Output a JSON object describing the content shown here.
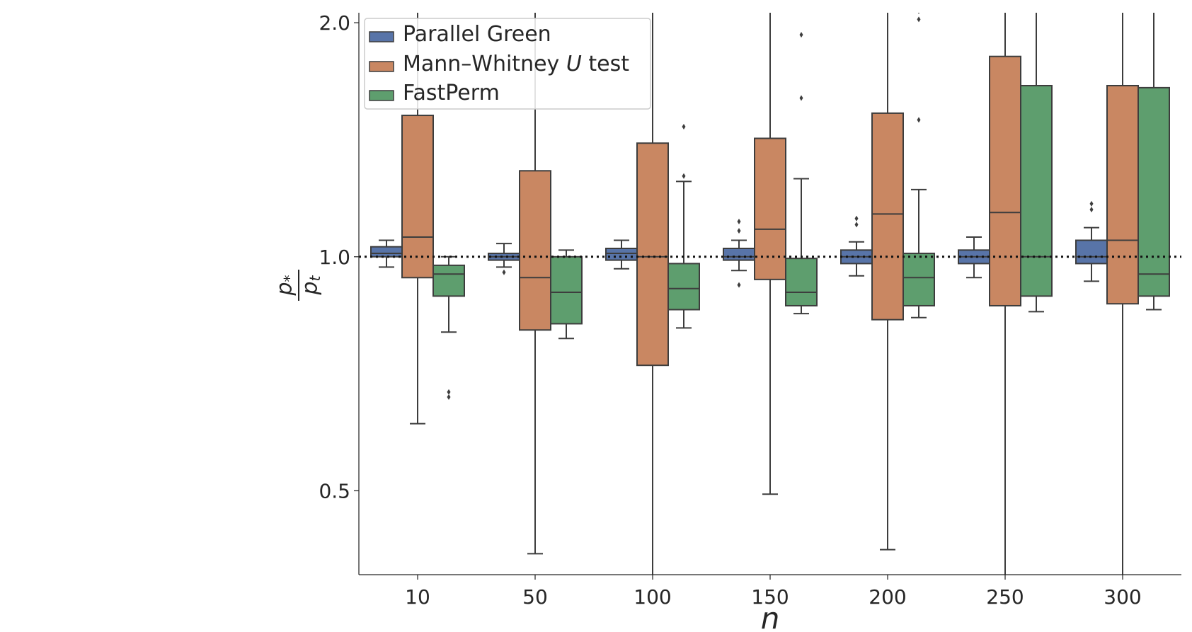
{
  "chart_data": {
    "type": "boxplot",
    "xlabel": "n",
    "ylabel": "p* / p_t",
    "ylabel_parts": {
      "num_base": "p",
      "num_sub": "*",
      "den_base": "p",
      "den_sub": "t"
    },
    "yscale": "log2",
    "ylim": [
      0.39,
      2.06
    ],
    "yticks": [
      0.5,
      1.0,
      2.0
    ],
    "ytick_labels": [
      "0.5",
      "1.0",
      "2.0"
    ],
    "categories": [
      "10",
      "50",
      "100",
      "150",
      "200",
      "250",
      "300"
    ],
    "reference_line": {
      "y": 1.0,
      "style": "dotted"
    },
    "legend": {
      "placement": "upper-left",
      "entries": [
        {
          "label": "Parallel Green"
        },
        {
          "label_pre": "Mann–Whitney ",
          "label_italic": "U",
          "label_post": " test"
        },
        {
          "label": "FastPerm"
        }
      ]
    },
    "series": [
      {
        "name": "Parallel Green",
        "color": "#5874a8",
        "boxes": [
          {
            "whislo": 0.97,
            "q1": 1.0,
            "med": 1.01,
            "q3": 1.03,
            "whishi": 1.05,
            "fliers": []
          },
          {
            "whislo": 0.97,
            "q1": 0.99,
            "med": 1.0,
            "q3": 1.01,
            "whishi": 1.04,
            "fliers": [
              0.955
            ]
          },
          {
            "whislo": 0.965,
            "q1": 0.99,
            "med": 1.01,
            "q3": 1.025,
            "whishi": 1.05,
            "fliers": []
          },
          {
            "whislo": 0.96,
            "q1": 0.99,
            "med": 1.0,
            "q3": 1.025,
            "whishi": 1.05,
            "fliers": [
              1.08,
              1.11,
              0.92
            ]
          },
          {
            "whislo": 0.945,
            "q1": 0.98,
            "med": 1.0,
            "q3": 1.02,
            "whishi": 1.045,
            "fliers": [
              1.1,
              1.12
            ]
          },
          {
            "whislo": 0.94,
            "q1": 0.98,
            "med": 1.0,
            "q3": 1.02,
            "whishi": 1.06,
            "fliers": []
          },
          {
            "whislo": 0.93,
            "q1": 0.98,
            "med": 1.0,
            "q3": 1.05,
            "whishi": 1.09,
            "fliers": [
              1.15,
              1.17
            ]
          }
        ]
      },
      {
        "name": "Mann–Whitney U test",
        "color": "#c98762",
        "boxes": [
          {
            "whislo": 0.61,
            "q1": 0.94,
            "med": 1.06,
            "q3": 1.52,
            "whishi": 2.7,
            "fliers": []
          },
          {
            "whislo": 0.415,
            "q1": 0.805,
            "med": 0.94,
            "q3": 1.29,
            "whishi": 2.7,
            "fliers": []
          },
          {
            "whislo": 0.3,
            "q1": 0.725,
            "med": 1.0,
            "q3": 1.4,
            "whishi": 2.7,
            "fliers": []
          },
          {
            "whislo": 0.495,
            "q1": 0.935,
            "med": 1.085,
            "q3": 1.42,
            "whishi": 2.7,
            "fliers": []
          },
          {
            "whislo": 0.42,
            "q1": 0.83,
            "med": 1.135,
            "q3": 1.53,
            "whishi": 2.7,
            "fliers": []
          },
          {
            "whislo": 0.3,
            "q1": 0.865,
            "med": 1.14,
            "q3": 1.81,
            "whishi": 2.7,
            "fliers": []
          },
          {
            "whislo": 0.3,
            "q1": 0.87,
            "med": 1.05,
            "q3": 1.66,
            "whishi": 2.7,
            "fliers": []
          }
        ]
      },
      {
        "name": "FastPerm",
        "color": "#5e9e6e",
        "boxes": [
          {
            "whislo": 0.8,
            "q1": 0.89,
            "med": 0.95,
            "q3": 0.975,
            "whishi": 1.0,
            "fliers": [
              0.66,
              0.67
            ]
          },
          {
            "whislo": 0.785,
            "q1": 0.82,
            "med": 0.9,
            "q3": 1.0,
            "whishi": 1.02,
            "fliers": []
          },
          {
            "whislo": 0.81,
            "q1": 0.855,
            "med": 0.91,
            "q3": 0.98,
            "whishi": 1.25,
            "fliers": [
              1.27,
              1.47
            ]
          },
          {
            "whislo": 0.845,
            "q1": 0.865,
            "med": 0.9,
            "q3": 0.995,
            "whishi": 1.26,
            "fliers": [
              1.6,
              1.93
            ]
          },
          {
            "whislo": 0.835,
            "q1": 0.865,
            "med": 0.94,
            "q3": 1.01,
            "whishi": 1.22,
            "fliers": [
              1.5,
              2.02,
              2.07
            ]
          },
          {
            "whislo": 0.85,
            "q1": 0.89,
            "med": 1.0,
            "q3": 1.66,
            "whishi": 2.7,
            "fliers": []
          },
          {
            "whislo": 0.855,
            "q1": 0.89,
            "med": 0.95,
            "q3": 1.65,
            "whishi": 2.7,
            "fliers": []
          }
        ]
      }
    ]
  }
}
